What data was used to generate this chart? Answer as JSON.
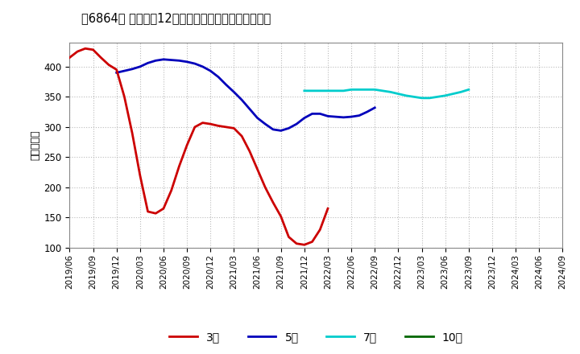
{
  "title": "［6864］ 経常利益12か月移動合計の標準偏差の推移",
  "ylabel": "（百万円）",
  "ylim": [
    100,
    440
  ],
  "yticks": [
    100,
    150,
    200,
    250,
    300,
    350,
    400
  ],
  "background_color": "#ffffff",
  "grid_color": "#aaaaaa",
  "x_labels": [
    "2019/06",
    "2019/09",
    "2019/12",
    "2020/03",
    "2020/06",
    "2020/09",
    "2020/12",
    "2021/03",
    "2021/06",
    "2021/09",
    "2021/12",
    "2022/03",
    "2022/06",
    "2022/09",
    "2022/12",
    "2023/03",
    "2023/06",
    "2023/09",
    "2023/12",
    "2024/03",
    "2024/06",
    "2024/09"
  ],
  "series_3year": {
    "color": "#cc0000",
    "label": "3年",
    "start": "2019/06",
    "values": [
      415,
      425,
      430,
      428,
      415,
      403,
      395,
      350,
      290,
      220,
      160,
      157,
      165,
      195,
      235,
      270,
      300,
      307,
      305,
      302,
      300,
      298,
      285,
      260,
      230,
      200,
      175,
      152,
      118,
      107,
      105,
      110,
      130,
      165
    ]
  },
  "series_5year": {
    "color": "#0000bb",
    "label": "5年",
    "start": "2019/12",
    "values": [
      390,
      393,
      396,
      400,
      406,
      410,
      412,
      411,
      410,
      408,
      405,
      400,
      393,
      383,
      370,
      358,
      345,
      330,
      315,
      305,
      296,
      294,
      298,
      305,
      315,
      322,
      322,
      318,
      317,
      316,
      317,
      319,
      325,
      332
    ]
  },
  "series_7year": {
    "color": "#00cccc",
    "label": "7年",
    "start": "2021/12",
    "values": [
      360,
      360,
      360,
      360,
      360,
      360,
      362,
      362,
      362,
      362,
      360,
      358,
      355,
      352,
      350,
      348,
      348,
      350,
      352,
      355,
      358,
      362
    ]
  },
  "series_10year": {
    "color": "#006600",
    "label": "10年",
    "start": null,
    "values": []
  },
  "line_width": 2.0
}
